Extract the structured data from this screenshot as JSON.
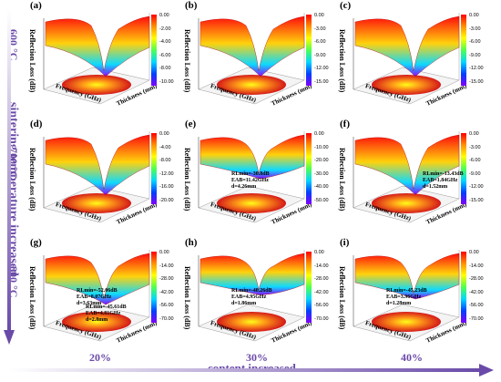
{
  "side_labels": {
    "temp_600": "600 °C",
    "temp_700": "700 °C",
    "temp_800": "800 °C",
    "sintering": "sintering temperature increased"
  },
  "bottom_labels": {
    "pct_20": "20%",
    "pct_30": "30%",
    "pct_40": "40%",
    "content": "content increased"
  },
  "axis_text": {
    "y": "Reflection Loss (dB)",
    "x": "Frequency (GHz)",
    "t": "Thickness (mm)"
  },
  "panels": [
    {
      "id": "a",
      "ticks": [
        "0.00",
        "-2.00",
        "-4.00",
        "-6.00",
        "-8.00",
        "-10.00"
      ],
      "ann": []
    },
    {
      "id": "b",
      "ticks": [
        "0.00",
        "-3.00",
        "-6.00",
        "-9.00",
        "-12.00",
        "-15.00"
      ],
      "ann": []
    },
    {
      "id": "c",
      "ticks": [
        "0.00",
        "-3.00",
        "-6.00",
        "-9.00",
        "-12.00",
        "-15.00"
      ],
      "ann": []
    },
    {
      "id": "d",
      "ticks": [
        "0.00",
        "-4.00",
        "-8.00",
        "-12.00",
        "-16.00",
        "-20.00"
      ],
      "ann": []
    },
    {
      "id": "e",
      "ticks": [
        "0.00",
        "-10.00",
        "-20.00",
        "-30.00",
        "-40.00",
        "-50.00"
      ],
      "ann": [
        [
          "RLmin=-30.8dB",
          "EAB=11.42GHz",
          "d=4.26mm"
        ]
      ]
    },
    {
      "id": "f",
      "ticks": [
        "0.00",
        "-3.00",
        "-6.00",
        "-9.00",
        "-12.00",
        "-15.00"
      ],
      "ann": [
        [
          "RLmin=-13.43dB",
          "EAB=1.84GHz",
          "d=1.52mm"
        ]
      ]
    },
    {
      "id": "g",
      "ticks": [
        "0.00",
        "-14.00",
        "-28.00",
        "-42.00",
        "-56.00",
        "-70.00"
      ],
      "ann": [
        [
          "RLmin=-52.06dB",
          "EAB=8.07GHz",
          "d=3.63mm"
        ],
        [
          "RLmin=-45.61dB",
          "EAB=4.81GHz",
          "d=2.8mm"
        ]
      ]
    },
    {
      "id": "h",
      "ticks": [
        "0.00",
        "-14.00",
        "-28.00",
        "-42.00",
        "-56.00",
        "-70.00"
      ],
      "ann": [
        [
          "RLmin=-40.26dB",
          "EAB=4.95GHz",
          "d=1.86mm"
        ]
      ]
    },
    {
      "id": "i",
      "ticks": [
        "0.00",
        "-14.00",
        "-28.00",
        "-42.00",
        "-56.00",
        "-70.00"
      ],
      "ann": [
        [
          "RLmin=-45.23dB",
          "EAB=3.96GHz",
          "d=1.28mm"
        ]
      ]
    }
  ],
  "colors": {
    "accent": "#6a4aa8",
    "surface_top": "#ff0000",
    "surface_mid": "#ffd000",
    "surface_low": "#00d8ff",
    "surface_min": "#8000ff"
  },
  "chart_data": {
    "type": "heatmap",
    "title": "",
    "xlabel": "Frequency (GHz)",
    "ylabel": "Reflection Loss (dB)",
    "zlabel": "Thickness (mm)",
    "panels": [
      {
        "id": "a",
        "sinter_temp": "600 °C",
        "content": "20%",
        "colorbar_range": [
          -10,
          0
        ]
      },
      {
        "id": "b",
        "sinter_temp": "600 °C",
        "content": "30%",
        "colorbar_range": [
          -15,
          0
        ]
      },
      {
        "id": "c",
        "sinter_temp": "600 °C",
        "content": "40%",
        "colorbar_range": [
          -15,
          0
        ]
      },
      {
        "id": "d",
        "sinter_temp": "700 °C",
        "content": "20%",
        "colorbar_range": [
          -20,
          0
        ]
      },
      {
        "id": "e",
        "sinter_temp": "700 °C",
        "content": "30%",
        "colorbar_range": [
          -50,
          0
        ],
        "RL_min_dB": -30.8,
        "EAB_GHz": 11.42,
        "d_mm": 4.26
      },
      {
        "id": "f",
        "sinter_temp": "700 °C",
        "content": "40%",
        "colorbar_range": [
          -15,
          0
        ],
        "RL_min_dB": -13.43,
        "EAB_GHz": 1.84,
        "d_mm": 1.52
      },
      {
        "id": "g",
        "sinter_temp": "800 °C",
        "content": "20%",
        "colorbar_range": [
          -70,
          0
        ],
        "RL_min_dB": -52.06,
        "EAB_GHz": 8.07,
        "d_mm": 3.63,
        "secondary": {
          "RL_min_dB": -45.61,
          "EAB_GHz": 4.81,
          "d_mm": 2.8
        }
      },
      {
        "id": "h",
        "sinter_temp": "800 °C",
        "content": "30%",
        "colorbar_range": [
          -70,
          0
        ],
        "RL_min_dB": -40.26,
        "EAB_GHz": 4.95,
        "d_mm": 1.86
      },
      {
        "id": "i",
        "sinter_temp": "800 °C",
        "content": "40%",
        "colorbar_range": [
          -70,
          0
        ],
        "RL_min_dB": -45.23,
        "EAB_GHz": 3.96,
        "d_mm": 1.28
      }
    ]
  }
}
